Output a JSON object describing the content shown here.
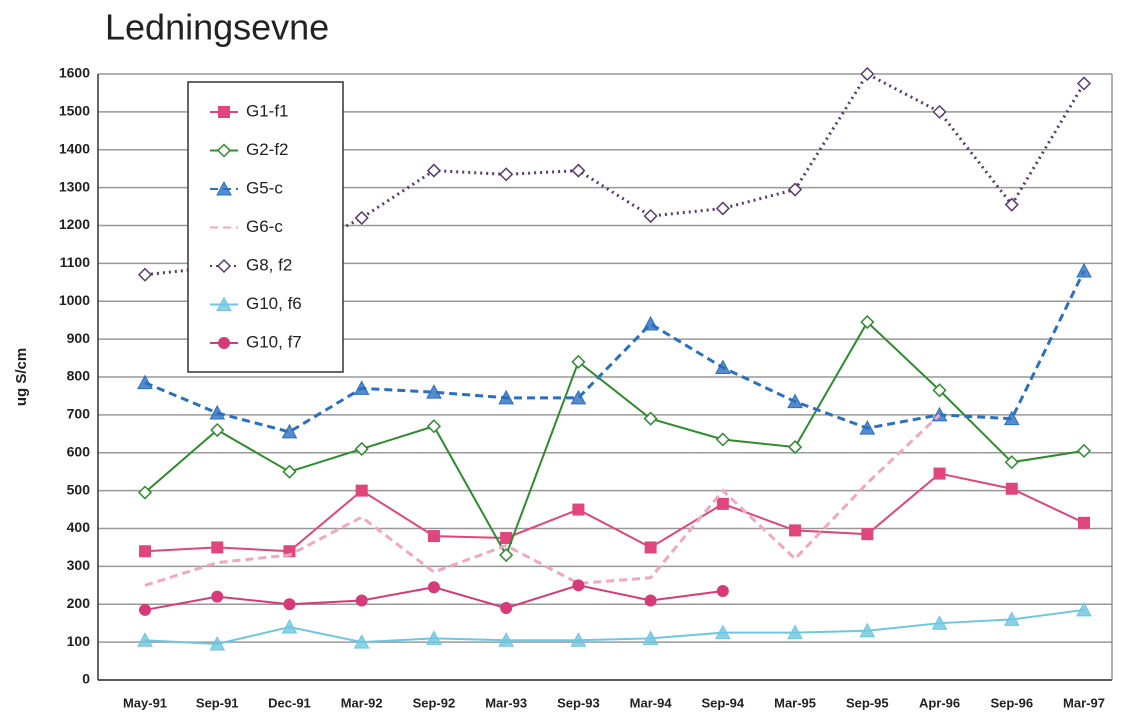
{
  "chart_data": {
    "type": "line",
    "title": "Ledningsevne",
    "y_label": "ug S/cm",
    "categories": [
      "May-91",
      "Sep-91",
      "Dec-91",
      "Mar-92",
      "Sep-92",
      "Mar-93",
      "Sep-93",
      "Mar-94",
      "Sep-94",
      "Mar-95",
      "Sep-95",
      "Apr-96",
      "Sep-96",
      "Mar-97"
    ],
    "ylim": [
      0,
      1600
    ],
    "yticks": [
      0,
      100,
      200,
      300,
      400,
      500,
      600,
      700,
      800,
      900,
      1000,
      1100,
      1200,
      1300,
      1400,
      1500,
      1600
    ],
    "grid": true,
    "legend": "upper left",
    "series": [
      {
        "name": "G1-f1",
        "color": "#e0457b",
        "marker": "square",
        "dash": "solid",
        "values": [
          340,
          350,
          340,
          500,
          380,
          375,
          450,
          350,
          465,
          395,
          385,
          545,
          505,
          415
        ]
      },
      {
        "name": "G2-f2",
        "color": "#2e8b2e",
        "marker": "diamond",
        "dash": "solid",
        "values": [
          495,
          660,
          550,
          610,
          670,
          330,
          840,
          690,
          635,
          615,
          945,
          765,
          575,
          605
        ]
      },
      {
        "name": "G5-c",
        "color": "#2a6fc0",
        "marker": "triangle",
        "dash": "dashed",
        "values": [
          785,
          705,
          655,
          770,
          760,
          745,
          745,
          940,
          825,
          735,
          665,
          700,
          690,
          1080
        ]
      },
      {
        "name": "G6-c",
        "color": "#f0a8bf",
        "marker": "none",
        "dash": "dashed",
        "values": [
          250,
          310,
          330,
          430,
          285,
          355,
          255,
          270,
          500,
          320,
          520,
          700,
          null,
          null
        ]
      },
      {
        "name": "G8, f2",
        "color": "#5a3a6a",
        "marker": "diamond",
        "dash": "dotted",
        "values": [
          1070,
          1090,
          1120,
          1220,
          1345,
          1335,
          1345,
          1225,
          1245,
          1295,
          1600,
          1500,
          1255,
          1575
        ]
      },
      {
        "name": "G10, f6",
        "color": "#6ec6e0",
        "marker": "triangle",
        "dash": "solid",
        "values": [
          105,
          95,
          140,
          100,
          110,
          105,
          105,
          110,
          125,
          125,
          130,
          150,
          160,
          185
        ]
      },
      {
        "name": "G10, f7",
        "color": "#d63a78",
        "marker": "circle",
        "dash": "solid",
        "values": [
          185,
          220,
          200,
          210,
          245,
          190,
          250,
          210,
          235,
          null,
          null,
          null,
          null,
          null
        ]
      }
    ]
  }
}
